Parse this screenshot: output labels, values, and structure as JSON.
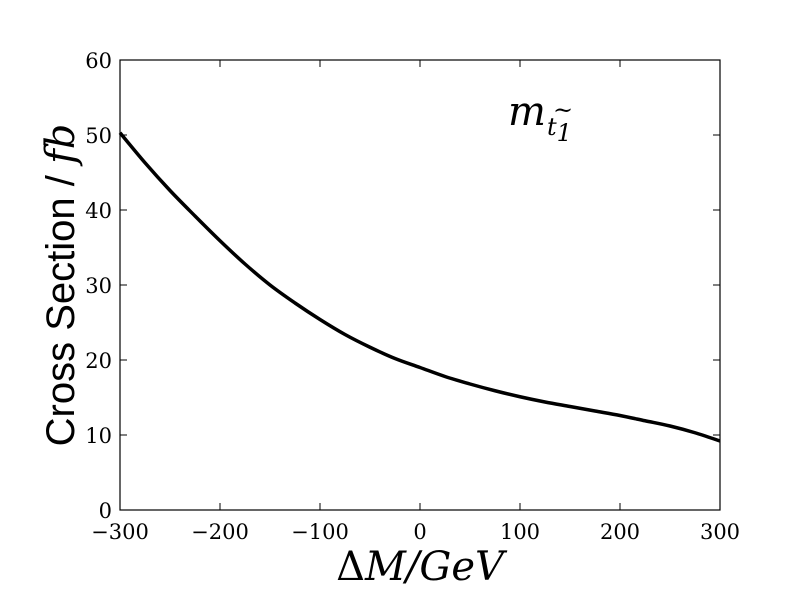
{
  "chart_data": {
    "type": "line",
    "title": "",
    "xlabel": "ΔM/GeV",
    "ylabel": "Cross Section / fb",
    "ylabel_parts": {
      "text": "Cross Section / ",
      "math": "fb"
    },
    "xlabel_parts": {
      "delta": "Δ",
      "math": "M/GeV"
    },
    "annotation": {
      "main": "m",
      "accent": "~",
      "sub_letter": "t",
      "sub_index": "1"
    },
    "xlim": [
      -300,
      300
    ],
    "ylim": [
      0,
      60
    ],
    "xticks": [
      -300,
      -200,
      -100,
      0,
      100,
      200,
      300
    ],
    "xtick_labels": [
      "−300",
      "−200",
      "−100",
      "0",
      "100",
      "200",
      "300"
    ],
    "yticks": [
      0,
      10,
      20,
      30,
      40,
      50,
      60
    ],
    "ytick_labels": [
      "0",
      "10",
      "20",
      "30",
      "40",
      "50",
      "60"
    ],
    "grid": false,
    "legend": "none",
    "line_color": "#000000",
    "series": [
      {
        "x": [
          -300,
          -275,
          -250,
          -225,
          -200,
          -175,
          -150,
          -125,
          -100,
          -75,
          -50,
          -25,
          0,
          25,
          50,
          75,
          100,
          125,
          150,
          175,
          200,
          225,
          250,
          275,
          300
        ],
        "y": [
          50.3,
          46.3,
          42.6,
          39.2,
          35.9,
          32.8,
          30.0,
          27.6,
          25.4,
          23.4,
          21.7,
          20.2,
          19.0,
          17.8,
          16.8,
          15.9,
          15.1,
          14.4,
          13.8,
          13.2,
          12.6,
          11.9,
          11.2,
          10.3,
          9.2
        ]
      }
    ]
  }
}
